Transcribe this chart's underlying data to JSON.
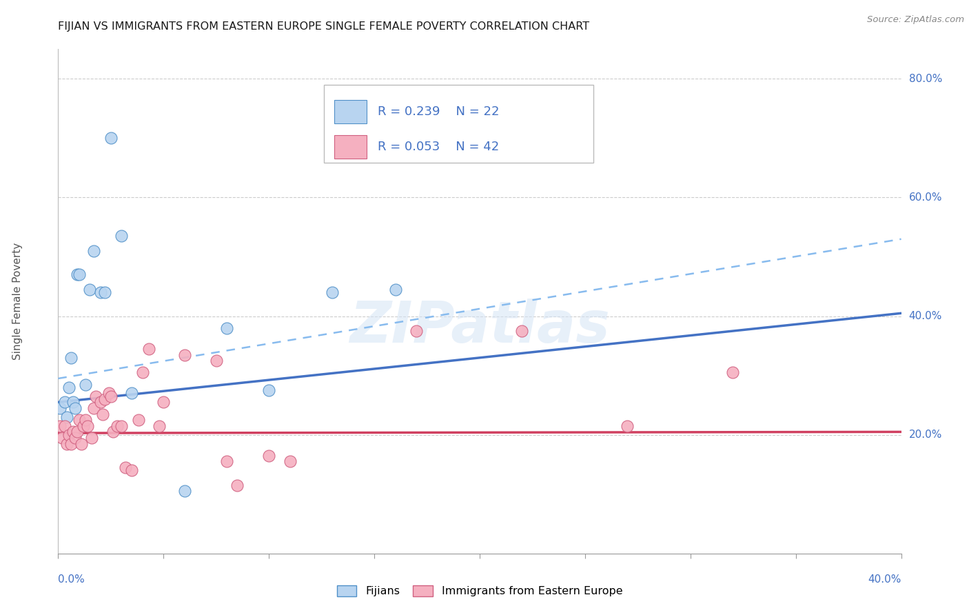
{
  "title": "FIJIAN VS IMMIGRANTS FROM EASTERN EUROPE SINGLE FEMALE POVERTY CORRELATION CHART",
  "source": "Source: ZipAtlas.com",
  "ylabel": "Single Female Poverty",
  "yticks": [
    0.0,
    0.2,
    0.4,
    0.6,
    0.8
  ],
  "ytick_labels": [
    "",
    "20.0%",
    "40.0%",
    "60.0%",
    "80.0%"
  ],
  "watermark": "ZIPatlas",
  "legend_blue_r": "R = 0.239",
  "legend_blue_n": "N = 22",
  "legend_pink_r": "R = 0.053",
  "legend_pink_n": "N = 42",
  "fijian_color": "#b8d4f0",
  "fijian_edge": "#5090c8",
  "immigrant_color": "#f5b0c0",
  "immigrant_edge": "#d06080",
  "fijian_x": [
    0.001,
    0.003,
    0.004,
    0.005,
    0.006,
    0.007,
    0.008,
    0.009,
    0.01,
    0.013,
    0.015,
    0.017,
    0.02,
    0.022,
    0.025,
    0.03,
    0.035,
    0.06,
    0.08,
    0.1,
    0.13,
    0.16
  ],
  "fijian_y": [
    0.245,
    0.255,
    0.23,
    0.28,
    0.33,
    0.255,
    0.245,
    0.47,
    0.47,
    0.285,
    0.445,
    0.51,
    0.44,
    0.44,
    0.7,
    0.535,
    0.27,
    0.105,
    0.38,
    0.275,
    0.44,
    0.445
  ],
  "immigrant_x": [
    0.001,
    0.002,
    0.003,
    0.004,
    0.005,
    0.006,
    0.007,
    0.008,
    0.009,
    0.01,
    0.011,
    0.012,
    0.013,
    0.014,
    0.016,
    0.017,
    0.018,
    0.02,
    0.021,
    0.022,
    0.024,
    0.025,
    0.026,
    0.028,
    0.03,
    0.032,
    0.035,
    0.038,
    0.04,
    0.043,
    0.048,
    0.05,
    0.06,
    0.075,
    0.08,
    0.085,
    0.1,
    0.11,
    0.17,
    0.22,
    0.27,
    0.32
  ],
  "immigrant_y": [
    0.215,
    0.195,
    0.215,
    0.185,
    0.2,
    0.185,
    0.205,
    0.195,
    0.205,
    0.225,
    0.185,
    0.215,
    0.225,
    0.215,
    0.195,
    0.245,
    0.265,
    0.255,
    0.235,
    0.26,
    0.27,
    0.265,
    0.205,
    0.215,
    0.215,
    0.145,
    0.14,
    0.225,
    0.305,
    0.345,
    0.215,
    0.255,
    0.335,
    0.325,
    0.155,
    0.115,
    0.165,
    0.155,
    0.375,
    0.375,
    0.215,
    0.305
  ],
  "xmin": 0.0,
  "xmax": 0.4,
  "ymin": 0.0,
  "ymax": 0.85,
  "blue_trend": [
    0.0,
    0.255,
    0.4,
    0.405
  ],
  "pink_trend": [
    0.0,
    0.203,
    0.4,
    0.205
  ],
  "blue_dash": [
    0.0,
    0.295,
    0.4,
    0.53
  ],
  "grid_color": "#cccccc",
  "bg_color": "#ffffff",
  "title_color": "#1a1a1a",
  "axis_blue": "#4472c4",
  "legend_text_color": "#4472c4"
}
